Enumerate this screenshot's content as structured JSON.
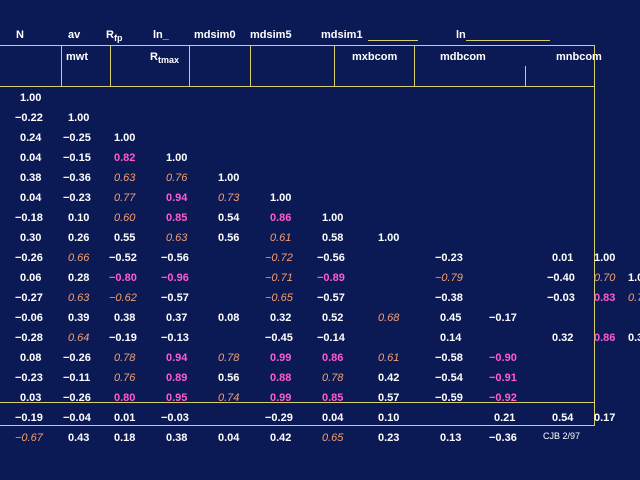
{
  "header": {
    "row1": [
      "N",
      "av",
      "R",
      "ln_",
      "mdsim0",
      "mdsim5",
      "mdsim1",
      "ln"
    ],
    "r_sub": "fp",
    "row2": [
      "mwt",
      "R",
      "mxbcom",
      "mdbcom",
      "mnbcom"
    ],
    "r2_sub": "tmax"
  },
  "rows": [
    [
      {
        "v": "1.00",
        "c": "w"
      }
    ],
    [
      {
        "v": "−0.22",
        "c": "w"
      },
      {
        "v": "1.00",
        "c": "w"
      }
    ],
    [
      {
        "v": "0.24",
        "c": "w"
      },
      {
        "v": "−0.25",
        "c": "w"
      },
      {
        "v": "1.00",
        "c": "w"
      }
    ],
    [
      {
        "v": "0.04",
        "c": "w"
      },
      {
        "v": "−0.15",
        "c": "w"
      },
      {
        "v": "0.82",
        "c": "m"
      },
      {
        "v": "1.00",
        "c": "w"
      }
    ],
    [
      {
        "v": "0.38",
        "c": "w"
      },
      {
        "v": "−0.36",
        "c": "w"
      },
      {
        "v": "0.63",
        "c": "o"
      },
      {
        "v": "0.76",
        "c": "o"
      },
      {
        "v": "1.00",
        "c": "w"
      }
    ],
    [
      {
        "v": "0.04",
        "c": "w"
      },
      {
        "v": "−0.23",
        "c": "w"
      },
      {
        "v": "0.77",
        "c": "o"
      },
      {
        "v": "0.94",
        "c": "m"
      },
      {
        "v": "0.73",
        "c": "o"
      },
      {
        "v": "1.00",
        "c": "w"
      }
    ],
    [
      {
        "v": "−0.18",
        "c": "w"
      },
      {
        "v": "0.10",
        "c": "w"
      },
      {
        "v": "0.60",
        "c": "o"
      },
      {
        "v": "0.85",
        "c": "m"
      },
      {
        "v": "0.54",
        "c": "w"
      },
      {
        "v": "0.86",
        "c": "m"
      },
      {
        "v": "1.00",
        "c": "w"
      }
    ],
    [
      {
        "v": "0.30",
        "c": "w"
      },
      {
        "v": "0.26",
        "c": "w"
      },
      {
        "v": "0.55",
        "c": "w"
      },
      {
        "v": "0.63",
        "c": "o"
      },
      {
        "v": "0.56",
        "c": "w"
      },
      {
        "v": "0.61",
        "c": "o"
      },
      {
        "v": "0.58",
        "c": "w"
      },
      {
        "v": "1.00",
        "c": "w"
      }
    ],
    [
      {
        "v": "−0.26",
        "c": "w"
      },
      {
        "v": "0.66",
        "c": "o"
      },
      {
        "v": "−0.52",
        "c": "w"
      },
      {
        "v": "−0.56",
        "c": "w"
      },
      {
        "v": "",
        "c": "w"
      },
      {
        "v": "−0.72",
        "c": "o"
      },
      {
        "v": "−0.56",
        "c": "w"
      },
      {
        "v": "",
        "c": "w"
      },
      {
        "v": "−0.23",
        "c": "w"
      },
      {
        "v": "",
        "c": "w"
      },
      {
        "v": "0.01",
        "c": "w"
      },
      {
        "v": "1.00",
        "c": "w"
      }
    ],
    [
      {
        "v": "0.06",
        "c": "w"
      },
      {
        "v": "0.28",
        "c": "w"
      },
      {
        "v": "−0.80",
        "c": "m"
      },
      {
        "v": "−0.96",
        "c": "m"
      },
      {
        "v": "",
        "c": "w"
      },
      {
        "v": "−0.71",
        "c": "o"
      },
      {
        "v": "−0.89",
        "c": "m"
      },
      {
        "v": "",
        "c": "w"
      },
      {
        "v": "−0.79",
        "c": "o"
      },
      {
        "v": "",
        "c": "w"
      },
      {
        "v": "−0.40",
        "c": "w"
      },
      {
        "v": "0.70",
        "c": "o"
      },
      {
        "v": "1.0",
        "c": "w"
      }
    ],
    [
      {
        "v": "−0.27",
        "c": "w"
      },
      {
        "v": "0.63",
        "c": "o"
      },
      {
        "v": "−0.62",
        "c": "o"
      },
      {
        "v": "−0.57",
        "c": "w"
      },
      {
        "v": "",
        "c": "w"
      },
      {
        "v": "−0.65",
        "c": "o"
      },
      {
        "v": "−0.57",
        "c": "w"
      },
      {
        "v": "",
        "c": "w"
      },
      {
        "v": "−0.38",
        "c": "w"
      },
      {
        "v": "",
        "c": "w"
      },
      {
        "v": "−0.03",
        "c": "w"
      },
      {
        "v": "0.83",
        "c": "m"
      },
      {
        "v": "0.7",
        "c": "o"
      }
    ],
    [
      {
        "v": "−0.06",
        "c": "w"
      },
      {
        "v": "0.39",
        "c": "w"
      },
      {
        "v": "0.38",
        "c": "w"
      },
      {
        "v": "0.37",
        "c": "w"
      },
      {
        "v": "0.08",
        "c": "w"
      },
      {
        "v": "0.32",
        "c": "w"
      },
      {
        "v": "0.52",
        "c": "w"
      },
      {
        "v": "0.68",
        "c": "o"
      },
      {
        "v": "0.45",
        "c": "w"
      },
      {
        "v": "−0.17",
        "c": "w"
      }
    ],
    [
      {
        "v": "−0.28",
        "c": "w"
      },
      {
        "v": "0.64",
        "c": "o"
      },
      {
        "v": "−0.19",
        "c": "w"
      },
      {
        "v": "−0.13",
        "c": "w"
      },
      {
        "v": "",
        "c": "w"
      },
      {
        "v": "−0.45",
        "c": "w"
      },
      {
        "v": "−0.14",
        "c": "w"
      },
      {
        "v": "",
        "c": "w"
      },
      {
        "v": "0.14",
        "c": "w"
      },
      {
        "v": "",
        "c": "w"
      },
      {
        "v": "0.32",
        "c": "w"
      },
      {
        "v": "0.86",
        "c": "m"
      },
      {
        "v": "0.3",
        "c": "w"
      }
    ],
    [
      {
        "v": "0.08",
        "c": "w"
      },
      {
        "v": "−0.26",
        "c": "w"
      },
      {
        "v": "0.78",
        "c": "o"
      },
      {
        "v": "0.94",
        "c": "m"
      },
      {
        "v": "0.78",
        "c": "o"
      },
      {
        "v": "0.99",
        "c": "m"
      },
      {
        "v": "0.86",
        "c": "m"
      },
      {
        "v": "0.61",
        "c": "o"
      },
      {
        "v": "−0.58",
        "c": "w"
      },
      {
        "v": "−0.90",
        "c": "m"
      }
    ],
    [
      {
        "v": "−0.23",
        "c": "w"
      },
      {
        "v": "−0.11",
        "c": "w"
      },
      {
        "v": "0.76",
        "c": "o"
      },
      {
        "v": "0.89",
        "c": "m"
      },
      {
        "v": "0.56",
        "c": "w"
      },
      {
        "v": "0.88",
        "c": "m"
      },
      {
        "v": "0.78",
        "c": "o"
      },
      {
        "v": "0.42",
        "c": "w"
      },
      {
        "v": "−0.54",
        "c": "w"
      },
      {
        "v": "−0.91",
        "c": "m"
      }
    ],
    [
      {
        "v": "0.03",
        "c": "w"
      },
      {
        "v": "−0.26",
        "c": "w"
      },
      {
        "v": "0.80",
        "c": "m"
      },
      {
        "v": "0.95",
        "c": "m"
      },
      {
        "v": "0.74",
        "c": "o"
      },
      {
        "v": "0.99",
        "c": "m"
      },
      {
        "v": "0.85",
        "c": "m"
      },
      {
        "v": "0.57",
        "c": "w"
      },
      {
        "v": "−0.59",
        "c": "w"
      },
      {
        "v": "−0.92",
        "c": "m"
      }
    ],
    [
      {
        "v": "−0.19",
        "c": "w"
      },
      {
        "v": "−0.04",
        "c": "w"
      },
      {
        "v": "0.01",
        "c": "w"
      },
      {
        "v": "−0.03",
        "c": "w"
      },
      {
        "v": "",
        "c": "w"
      },
      {
        "v": "−0.29",
        "c": "w"
      },
      {
        "v": "0.04",
        "c": "w"
      },
      {
        "v": "0.10",
        "c": "w"
      },
      {
        "v": "",
        "c": "w"
      },
      {
        "v": "0.21",
        "c": "w"
      },
      {
        "v": "0.54",
        "c": "w"
      },
      {
        "v": "0.17",
        "c": "w"
      }
    ],
    [
      {
        "v": "−0.67",
        "c": "o"
      },
      {
        "v": "0.43",
        "c": "w"
      },
      {
        "v": "0.18",
        "c": "w"
      },
      {
        "v": "0.38",
        "c": "w"
      },
      {
        "v": "0.04",
        "c": "w"
      },
      {
        "v": "0.42",
        "c": "w"
      },
      {
        "v": "0.65",
        "c": "o"
      },
      {
        "v": "0.23",
        "c": "w"
      },
      {
        "v": "0.13",
        "c": "w"
      },
      {
        "v": "−0.36",
        "c": "w"
      }
    ]
  ],
  "footer": "CJB 2/97",
  "colors": {
    "background": "#0b1a55",
    "normal": "#ffffff",
    "strong": "#ff5cc8",
    "moderate": "#f4a070",
    "grid": "#d8cf6a"
  }
}
